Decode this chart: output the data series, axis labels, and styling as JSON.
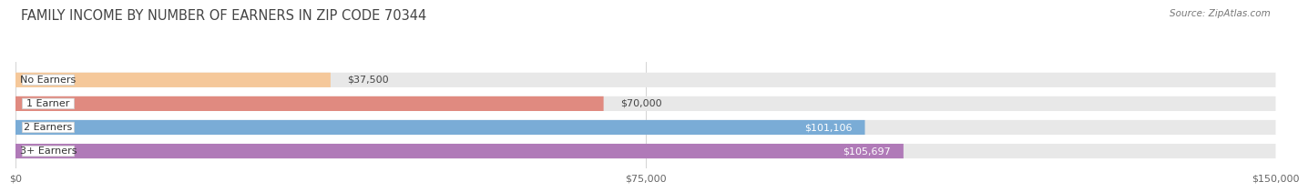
{
  "title": "FAMILY INCOME BY NUMBER OF EARNERS IN ZIP CODE 70344",
  "source": "Source: ZipAtlas.com",
  "categories": [
    "No Earners",
    "1 Earner",
    "2 Earners",
    "3+ Earners"
  ],
  "values": [
    37500,
    70000,
    101106,
    105697
  ],
  "max_value": 150000,
  "bar_colors": [
    "#f5c89a",
    "#e08a80",
    "#7aacd6",
    "#b07ab8"
  ],
  "label_colors": [
    "#444444",
    "#444444",
    "#ffffff",
    "#ffffff"
  ],
  "value_labels": [
    "$37,500",
    "$70,000",
    "$101,106",
    "$105,697"
  ],
  "x_ticks": [
    0,
    75000,
    150000
  ],
  "x_tick_labels": [
    "$0",
    "$75,000",
    "$150,000"
  ],
  "background_color": "#ffffff",
  "bar_bg_color": "#e8e8e8",
  "title_color": "#444444",
  "source_color": "#777777",
  "title_fontsize": 10.5,
  "source_fontsize": 7.5,
  "label_fontsize": 8,
  "value_fontsize": 8,
  "tick_fontsize": 8
}
